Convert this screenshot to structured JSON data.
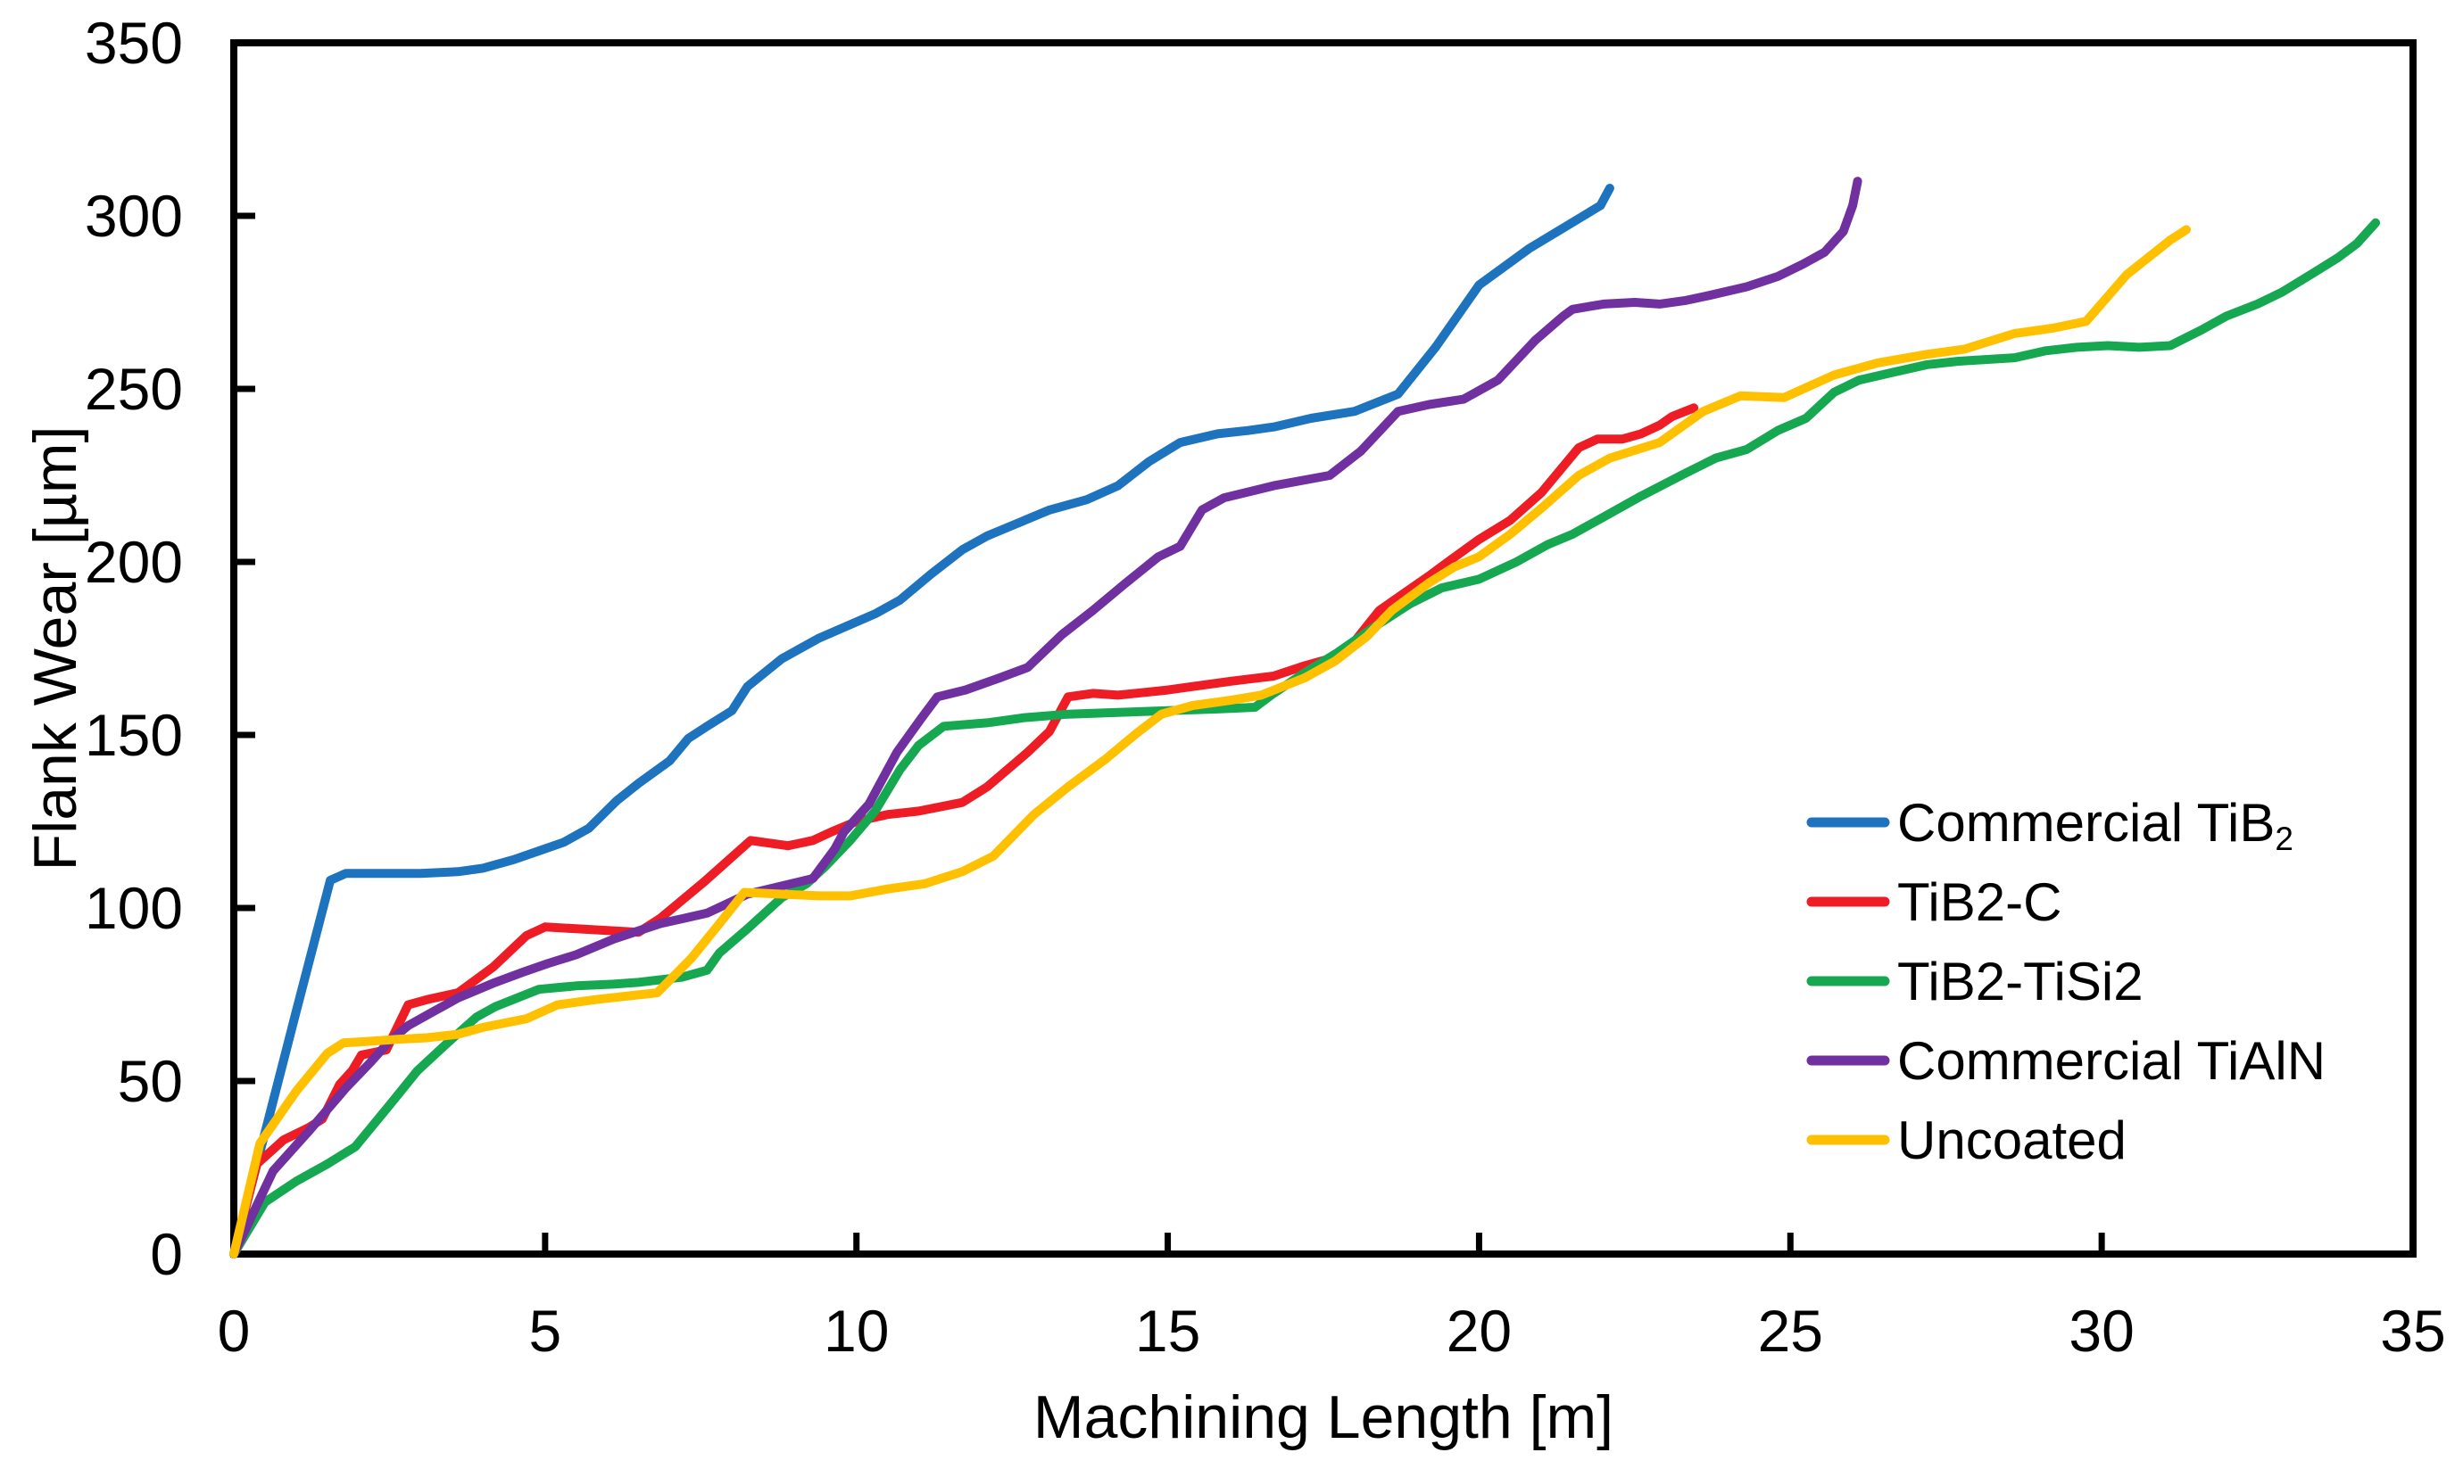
{
  "chart_data": {
    "type": "line",
    "title": "",
    "xlabel": "Machining Length [m]",
    "ylabel": "Flank Wear [µm]",
    "xlim": [
      0,
      35
    ],
    "ylim": [
      0,
      350
    ],
    "xticks": [
      0,
      5,
      10,
      15,
      20,
      25,
      30,
      35
    ],
    "yticks": [
      0,
      50,
      100,
      150,
      200,
      250,
      300,
      350
    ],
    "grid": false,
    "legend_position": "inside-right",
    "axis_color": "#000000",
    "background": "#ffffff",
    "series": [
      {
        "name": "Commercial TiB2",
        "label_base": "Commercial TiB",
        "label_sub": "2",
        "color": "#1E73BE",
        "points": [
          [
            0,
            0
          ],
          [
            0.5,
            35
          ],
          [
            1,
            70
          ],
          [
            1.55,
            108
          ],
          [
            1.8,
            110
          ],
          [
            2.4,
            110
          ],
          [
            3,
            110
          ],
          [
            3.6,
            110.5
          ],
          [
            4,
            111.5
          ],
          [
            4.5,
            114
          ],
          [
            4.9,
            116.5
          ],
          [
            5.3,
            119
          ],
          [
            5.7,
            123
          ],
          [
            6.15,
            131
          ],
          [
            6.5,
            136
          ],
          [
            7,
            142.5
          ],
          [
            7.3,
            149
          ],
          [
            7.6,
            152.5
          ],
          [
            8,
            157
          ],
          [
            8.25,
            164
          ],
          [
            8.8,
            172
          ],
          [
            9.4,
            178
          ],
          [
            10.3,
            185
          ],
          [
            10.7,
            189
          ],
          [
            11.2,
            196.5
          ],
          [
            11.7,
            203.5
          ],
          [
            12.1,
            207.5
          ],
          [
            12.7,
            212
          ],
          [
            13.1,
            215
          ],
          [
            13.7,
            218
          ],
          [
            14.2,
            222
          ],
          [
            14.7,
            229
          ],
          [
            15.2,
            234.5
          ],
          [
            15.8,
            237
          ],
          [
            16.3,
            238
          ],
          [
            16.7,
            239
          ],
          [
            17.3,
            241.5
          ],
          [
            18,
            243.5
          ],
          [
            18.7,
            248.5
          ],
          [
            19.3,
            262
          ],
          [
            20,
            280
          ],
          [
            20.8,
            290.5
          ],
          [
            21.4,
            297
          ],
          [
            21.95,
            303
          ],
          [
            22.1,
            308
          ]
        ]
      },
      {
        "name": "TiB2-C",
        "label_base": "TiB2-C",
        "label_sub": "",
        "color": "#EE1C25",
        "points": [
          [
            0,
            0
          ],
          [
            0.37,
            26
          ],
          [
            0.8,
            33
          ],
          [
            1.2,
            36.5
          ],
          [
            1.42,
            39
          ],
          [
            1.7,
            49
          ],
          [
            1.9,
            53
          ],
          [
            2.05,
            57.5
          ],
          [
            2.45,
            59
          ],
          [
            2.8,
            72
          ],
          [
            3.1,
            73.5
          ],
          [
            3.6,
            75.5
          ],
          [
            4.17,
            83
          ],
          [
            4.7,
            92
          ],
          [
            5,
            94.5
          ],
          [
            5.5,
            94
          ],
          [
            6,
            93.5
          ],
          [
            6.5,
            93
          ],
          [
            6.85,
            97
          ],
          [
            7.55,
            107.5
          ],
          [
            8.3,
            119.5
          ],
          [
            8.9,
            118
          ],
          [
            9.3,
            119.5
          ],
          [
            9.6,
            122
          ],
          [
            10,
            125
          ],
          [
            10.5,
            127
          ],
          [
            11,
            128
          ],
          [
            11.7,
            130.5
          ],
          [
            12.1,
            135
          ],
          [
            12.75,
            145
          ],
          [
            13.1,
            151
          ],
          [
            13.4,
            161
          ],
          [
            13.8,
            162
          ],
          [
            14.2,
            161.5
          ],
          [
            15,
            163
          ],
          [
            16,
            165.5
          ],
          [
            16.7,
            167
          ],
          [
            17.2,
            170
          ],
          [
            17.6,
            172
          ],
          [
            18,
            177
          ],
          [
            18.4,
            186
          ],
          [
            18.8,
            191
          ],
          [
            19.2,
            196
          ],
          [
            19.5,
            200
          ],
          [
            20,
            206.5
          ],
          [
            20.5,
            212
          ],
          [
            21,
            220
          ],
          [
            21.6,
            233
          ],
          [
            21.9,
            235.5
          ],
          [
            22.3,
            235.5
          ],
          [
            22.6,
            237
          ],
          [
            22.9,
            239.5
          ],
          [
            23.1,
            242
          ],
          [
            23.45,
            244.5
          ]
        ]
      },
      {
        "name": "TiB2-TiSi2",
        "label_base": "TiB2-TiSi2",
        "label_sub": "",
        "color": "#16A850",
        "points": [
          [
            0,
            0
          ],
          [
            0.5,
            15
          ],
          [
            1,
            21
          ],
          [
            1.5,
            26
          ],
          [
            1.95,
            31
          ],
          [
            2.5,
            43
          ],
          [
            2.95,
            53
          ],
          [
            3.4,
            60.5
          ],
          [
            3.9,
            68.5
          ],
          [
            4.2,
            71.5
          ],
          [
            4.9,
            76.5
          ],
          [
            5.5,
            77.5
          ],
          [
            6.1,
            78
          ],
          [
            6.5,
            78.5
          ],
          [
            7.2,
            80
          ],
          [
            7.6,
            82
          ],
          [
            7.8,
            87
          ],
          [
            8.25,
            94
          ],
          [
            8.8,
            103
          ],
          [
            9.2,
            107
          ],
          [
            9.5,
            112
          ],
          [
            9.9,
            119.5
          ],
          [
            10.3,
            128
          ],
          [
            10.7,
            140
          ],
          [
            11,
            147
          ],
          [
            11.4,
            152.5
          ],
          [
            12.1,
            153.5
          ],
          [
            12.7,
            155
          ],
          [
            13.4,
            156
          ],
          [
            14.2,
            156.5
          ],
          [
            15,
            157
          ],
          [
            15.8,
            157.5
          ],
          [
            16.4,
            158
          ],
          [
            16.7,
            162
          ],
          [
            17.2,
            168
          ],
          [
            17.7,
            173.5
          ],
          [
            18.3,
            181
          ],
          [
            18.9,
            188
          ],
          [
            19.4,
            192.5
          ],
          [
            20,
            195
          ],
          [
            20.6,
            200
          ],
          [
            21.1,
            205
          ],
          [
            21.5,
            208
          ],
          [
            22,
            213
          ],
          [
            22.6,
            219
          ],
          [
            23.3,
            225.5
          ],
          [
            23.8,
            230
          ],
          [
            24.3,
            232.5
          ],
          [
            24.8,
            238
          ],
          [
            25.25,
            241.5
          ],
          [
            25.7,
            249
          ],
          [
            26.1,
            252.5
          ],
          [
            26.7,
            255
          ],
          [
            27.2,
            257
          ],
          [
            27.7,
            258
          ],
          [
            28.6,
            259
          ],
          [
            29.1,
            261
          ],
          [
            29.6,
            262
          ],
          [
            30.1,
            262.5
          ],
          [
            30.6,
            262
          ],
          [
            31.1,
            262.5
          ],
          [
            31.6,
            267
          ],
          [
            32,
            271
          ],
          [
            32.5,
            274.5
          ],
          [
            32.9,
            278
          ],
          [
            33.4,
            283.5
          ],
          [
            33.8,
            288
          ],
          [
            34.1,
            292
          ],
          [
            34.4,
            298
          ]
        ]
      },
      {
        "name": "Commercial TiAlN",
        "label_base": "Commercial TiAlN",
        "label_sub": "",
        "color": "#7030A0",
        "points": [
          [
            0,
            0
          ],
          [
            0.63,
            24
          ],
          [
            1.23,
            36
          ],
          [
            1.8,
            48
          ],
          [
            2.2,
            55.5
          ],
          [
            2.5,
            61.5
          ],
          [
            2.8,
            66
          ],
          [
            3.15,
            69.5
          ],
          [
            3.6,
            74
          ],
          [
            4.2,
            78.5
          ],
          [
            4.65,
            81.5
          ],
          [
            5.05,
            84
          ],
          [
            5.5,
            86.5
          ],
          [
            6.1,
            91
          ],
          [
            6.85,
            95.5
          ],
          [
            7.6,
            98.5
          ],
          [
            8.25,
            104
          ],
          [
            9.3,
            108.5
          ],
          [
            9.65,
            117
          ],
          [
            9.8,
            122
          ],
          [
            10.2,
            130
          ],
          [
            10.65,
            145
          ],
          [
            11.05,
            155
          ],
          [
            11.3,
            161
          ],
          [
            11.75,
            163
          ],
          [
            12.3,
            166.5
          ],
          [
            12.75,
            169.5
          ],
          [
            13.3,
            179
          ],
          [
            13.8,
            186
          ],
          [
            14.3,
            193.5
          ],
          [
            14.85,
            201.5
          ],
          [
            15.2,
            204.5
          ],
          [
            15.55,
            215
          ],
          [
            15.9,
            218.5
          ],
          [
            16.7,
            222
          ],
          [
            17.6,
            225
          ],
          [
            18.1,
            232
          ],
          [
            18.7,
            243.5
          ],
          [
            19.2,
            245.5
          ],
          [
            19.75,
            247
          ],
          [
            20.3,
            252.5
          ],
          [
            20.9,
            264
          ],
          [
            21.35,
            271
          ],
          [
            21.5,
            273
          ],
          [
            22,
            274.5
          ],
          [
            22.5,
            275
          ],
          [
            22.9,
            274.5
          ],
          [
            23.3,
            275.5
          ],
          [
            23.7,
            277
          ],
          [
            24.3,
            279.5
          ],
          [
            24.8,
            282.5
          ],
          [
            25.2,
            286
          ],
          [
            25.55,
            289.5
          ],
          [
            25.85,
            295.5
          ],
          [
            26,
            303
          ],
          [
            26.08,
            310
          ]
        ]
      },
      {
        "name": "Uncoated",
        "label_base": "Uncoated",
        "label_sub": "",
        "color": "#FFC000",
        "points": [
          [
            0,
            0
          ],
          [
            0.42,
            32
          ],
          [
            1,
            47
          ],
          [
            1.5,
            58
          ],
          [
            1.76,
            61
          ],
          [
            2.2,
            61.5
          ],
          [
            2.6,
            62
          ],
          [
            3.1,
            62.5
          ],
          [
            3.6,
            63.5
          ],
          [
            4,
            65.5
          ],
          [
            4.7,
            68
          ],
          [
            5.2,
            72
          ],
          [
            5.8,
            73.5
          ],
          [
            6.3,
            74.5
          ],
          [
            6.8,
            75.5
          ],
          [
            7.35,
            85.5
          ],
          [
            7.8,
            95.5
          ],
          [
            8.2,
            104.5
          ],
          [
            8.8,
            104
          ],
          [
            9.4,
            103.5
          ],
          [
            9.9,
            103.5
          ],
          [
            10.5,
            105.5
          ],
          [
            11.1,
            107
          ],
          [
            11.7,
            110.5
          ],
          [
            12.2,
            115
          ],
          [
            12.85,
            127
          ],
          [
            13.4,
            135
          ],
          [
            14,
            143
          ],
          [
            14.5,
            150.5
          ],
          [
            14.9,
            156
          ],
          [
            15.4,
            158.5
          ],
          [
            16,
            160
          ],
          [
            16.5,
            161.5
          ],
          [
            17.2,
            166.5
          ],
          [
            17.7,
            171.5
          ],
          [
            18.2,
            178.5
          ],
          [
            18.6,
            186
          ],
          [
            19.2,
            194
          ],
          [
            19.6,
            198.5
          ],
          [
            20,
            201.5
          ],
          [
            20.5,
            208
          ],
          [
            21,
            215.5
          ],
          [
            21.6,
            225
          ],
          [
            22.1,
            230
          ],
          [
            22.9,
            234.5
          ],
          [
            23.6,
            243.5
          ],
          [
            24.2,
            248
          ],
          [
            24.9,
            247.5
          ],
          [
            25.7,
            254
          ],
          [
            26.4,
            257.5
          ],
          [
            27.2,
            260
          ],
          [
            27.8,
            261.5
          ],
          [
            28.6,
            266
          ],
          [
            29.2,
            267.5
          ],
          [
            29.75,
            269.5
          ],
          [
            30.4,
            283
          ],
          [
            31.1,
            293
          ],
          [
            31.36,
            296
          ]
        ]
      }
    ]
  }
}
